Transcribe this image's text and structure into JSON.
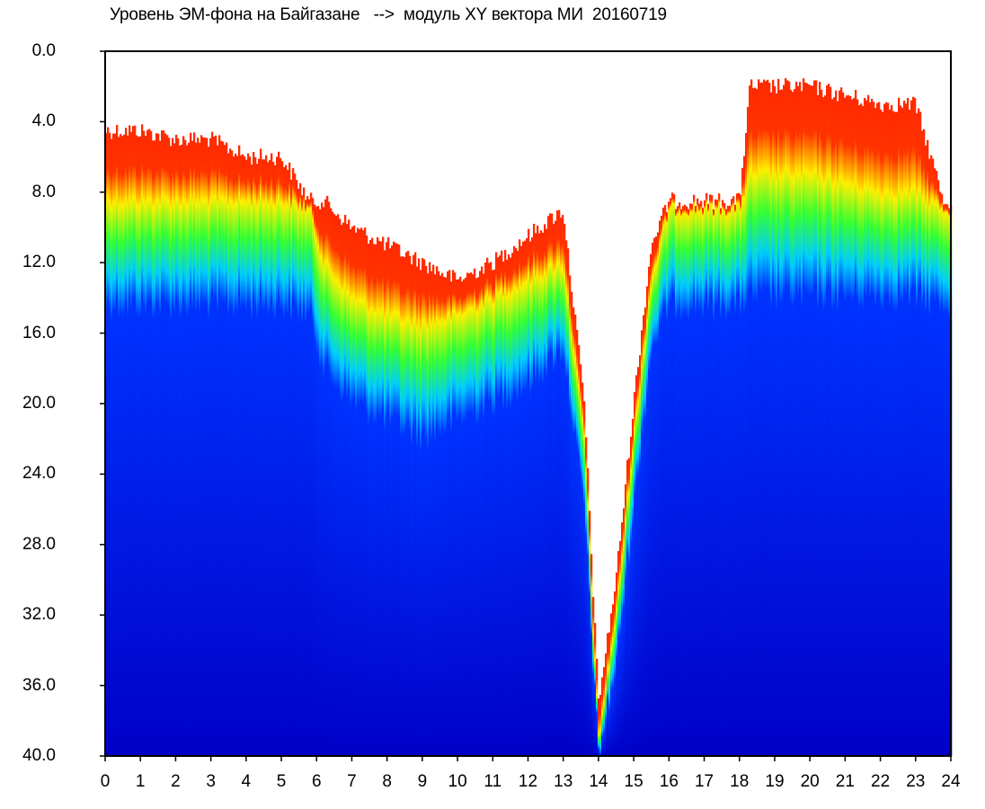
{
  "chart_data": {
    "type": "heatmap",
    "title": "Уровень ЭМ-фона на Байгазане   -->  модуль XY вектора МИ  20160719",
    "xlabel": "",
    "ylabel": "",
    "xlim": [
      0,
      24
    ],
    "ylim": [
      40.0,
      0.0
    ],
    "x_ticks": [
      "0",
      "1",
      "2",
      "3",
      "4",
      "5",
      "6",
      "7",
      "8",
      "9",
      "10",
      "11",
      "12",
      "13",
      "14",
      "15",
      "16",
      "17",
      "18",
      "19",
      "20",
      "21",
      "22",
      "23",
      "24"
    ],
    "y_ticks": [
      "0.0",
      "4.0",
      "8.0",
      "12.0",
      "16.0",
      "20.0",
      "24.0",
      "28.0",
      "32.0",
      "36.0",
      "40.0"
    ],
    "y_axis_inverted": true,
    "colorscale": [
      "#ffffff",
      "#ff0000",
      "#ffff00",
      "#00ff00",
      "#00ffff",
      "#0000ff"
    ],
    "level_profile": {
      "x": [
        0,
        1,
        2,
        3,
        4,
        5,
        5.8,
        6.2,
        7,
        8,
        9,
        10,
        11,
        12,
        13,
        13.6,
        14,
        14.5,
        15,
        15.5,
        16,
        17,
        18,
        18.3,
        19,
        20,
        21,
        22,
        23,
        23.8,
        24
      ],
      "top_signal": [
        4.5,
        4.5,
        5,
        5,
        6,
        6,
        8.5,
        8.5,
        10,
        11,
        12,
        13,
        12,
        10.5,
        9,
        20,
        37,
        30,
        20,
        11,
        8.5,
        8.5,
        8.5,
        2,
        2,
        2,
        2.5,
        3,
        3,
        8.5,
        8.5
      ],
      "red_band_bottom": [
        8.5,
        8.5,
        8.5,
        8.5,
        8.5,
        8.5,
        9,
        12,
        14,
        15,
        15.5,
        15,
        14,
        13,
        12,
        22,
        39,
        32,
        22,
        13,
        9,
        9,
        9,
        7,
        7,
        7,
        7.5,
        8,
        8,
        9,
        9
      ],
      "green_band_bottom": [
        14.5,
        14.5,
        14.5,
        14.5,
        14.5,
        14.5,
        15,
        18,
        20,
        21,
        22,
        21,
        20,
        19,
        17,
        26,
        40,
        35,
        26,
        17,
        14.5,
        14.5,
        14.5,
        14,
        14,
        14,
        14,
        14,
        14,
        14.5,
        14.5
      ]
    }
  }
}
